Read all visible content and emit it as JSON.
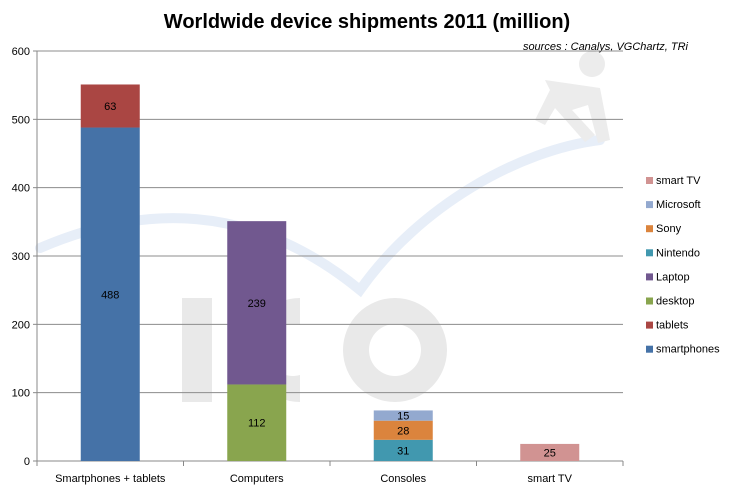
{
  "chart_data": {
    "type": "bar",
    "stacked": true,
    "title": "Worldwide device shipments 2011 (million)",
    "source_note": "sources : Canalys, VGChartz, TRi",
    "categories": [
      "Smartphones + tablets",
      "Computers",
      "Consoles",
      "smart TV"
    ],
    "ylim": [
      0,
      600
    ],
    "yticks": [
      0,
      100,
      200,
      300,
      400,
      500,
      600
    ],
    "grid": true,
    "legend_position": "right",
    "series": [
      {
        "name": "smartphones",
        "color": "#4572A7",
        "values": [
          488,
          null,
          null,
          null
        ]
      },
      {
        "name": "tablets",
        "color": "#AA4643",
        "values": [
          63,
          null,
          null,
          null
        ]
      },
      {
        "name": "desktop",
        "color": "#89A54E",
        "values": [
          null,
          112,
          null,
          null
        ]
      },
      {
        "name": "Laptop",
        "color": "#71588F",
        "values": [
          null,
          239,
          null,
          null
        ]
      },
      {
        "name": "Nintendo",
        "color": "#4198AF",
        "values": [
          null,
          null,
          31,
          null
        ]
      },
      {
        "name": "Sony",
        "color": "#DB843D",
        "values": [
          null,
          null,
          28,
          null
        ]
      },
      {
        "name": "Microsoft",
        "color": "#93A9CF",
        "values": [
          null,
          null,
          15,
          null
        ]
      },
      {
        "name": "smart TV",
        "color": "#D19392",
        "values": [
          null,
          null,
          null,
          25
        ]
      }
    ]
  }
}
